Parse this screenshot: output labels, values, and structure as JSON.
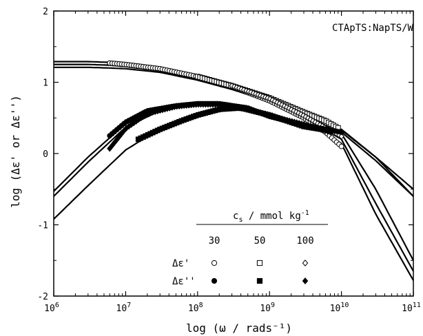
{
  "chart_data": {
    "type": "scatter",
    "title": "",
    "annotation": "CTApTS:NapTS/W",
    "xlabel": "log (ω / rads⁻¹)",
    "ylabel": "log (Δε' or Δε'')",
    "x_scale": "log",
    "xlim": [
      1000000.0,
      100000000000.0
    ],
    "ylim": [
      -2,
      2
    ],
    "x_ticks": [
      {
        "value": 1000000.0,
        "base": "10",
        "exp": "6"
      },
      {
        "value": 10000000.0,
        "base": "10",
        "exp": "7"
      },
      {
        "value": 100000000.0,
        "base": "10",
        "exp": "8"
      },
      {
        "value": 1000000000.0,
        "base": "10",
        "exp": "9"
      },
      {
        "value": 10000000000.0,
        "base": "10",
        "exp": "10"
      },
      {
        "value": 100000000000.0,
        "base": "10",
        "exp": "11"
      }
    ],
    "y_ticks": [
      "-2",
      "-1",
      "0",
      "1",
      "2"
    ],
    "grid": false,
    "legend": {
      "position": "bottom-right",
      "header_c": "c",
      "header_sub": "s",
      "header_unit": " / mmol kg",
      "header_sup": "-1",
      "concentrations": [
        "30",
        "50",
        "100"
      ],
      "rows": [
        "Δε'",
        "Δε''"
      ]
    },
    "series": [
      {
        "quantity": "Δε'",
        "cs": "30",
        "marker": "open-circle",
        "x": [
          6000000.0,
          10000000.0,
          30000000.0,
          100000000.0,
          300000000.0,
          1000000000.0,
          3000000000.0,
          6000000000.0,
          10000000000.0
        ],
        "y": [
          1.27,
          1.25,
          1.19,
          1.08,
          0.94,
          0.74,
          0.5,
          0.3,
          0.1
        ]
      },
      {
        "quantity": "Δε'",
        "cs": "50",
        "marker": "open-square",
        "x": [
          100000000.0,
          300000000.0,
          1000000000.0,
          3000000000.0,
          6000000000.0,
          9000000000.0
        ],
        "y": [
          1.08,
          0.95,
          0.78,
          0.58,
          0.46,
          0.36
        ]
      },
      {
        "quantity": "Δε'",
        "cs": "100",
        "marker": "open-diamond",
        "x": [
          300000000.0,
          1000000000.0,
          3000000000.0,
          6000000000.0,
          10000000000.0
        ],
        "y": [
          0.95,
          0.77,
          0.53,
          0.36,
          0.24
        ]
      },
      {
        "quantity": "Δε''",
        "cs": "30",
        "marker": "filled-circle",
        "x": [
          6000000.0,
          10000000.0,
          20000000.0,
          50000000.0,
          100000000.0,
          200000000.0,
          500000000.0,
          1000000000.0,
          3000000000.0,
          10000000000.0
        ],
        "y": [
          0.25,
          0.44,
          0.6,
          0.67,
          0.7,
          0.7,
          0.64,
          0.52,
          0.4,
          0.3
        ]
      },
      {
        "quantity": "Δε''",
        "cs": "50",
        "marker": "filled-square",
        "x": [
          15000000.0,
          30000000.0,
          60000000.0,
          100000000.0,
          200000000.0,
          400000000.0,
          1000000000.0,
          3000000000.0,
          6000000000.0
        ],
        "y": [
          0.2,
          0.34,
          0.46,
          0.54,
          0.62,
          0.64,
          0.54,
          0.38,
          0.33
        ]
      },
      {
        "quantity": "Δε''",
        "cs": "100",
        "marker": "filled-diamond",
        "x": [
          6000000.0,
          10000000.0,
          20000000.0,
          50000000.0,
          100000000.0,
          200000000.0,
          500000000.0,
          1000000000.0,
          3000000000.0,
          7000000000.0
        ],
        "y": [
          0.07,
          0.35,
          0.56,
          0.66,
          0.69,
          0.69,
          0.63,
          0.53,
          0.41,
          0.3
        ]
      }
    ],
    "fit_curves": [
      {
        "x": [
          1000000.0,
          3000000.0,
          6000000.0,
          10000000.0,
          30000000.0,
          100000000.0,
          300000000.0,
          1000000000.0,
          3000000000.0,
          10000000000.0,
          30000000000.0,
          100000000000.0
        ],
        "y": [
          1.29,
          1.29,
          1.28,
          1.25,
          1.18,
          1.06,
          0.92,
          0.72,
          0.5,
          0.14,
          -0.85,
          -1.78
        ]
      },
      {
        "x": [
          1000000.0,
          3000000.0,
          6000000.0,
          10000000.0,
          30000000.0,
          100000000.0,
          300000000.0,
          1000000000.0,
          3000000000.0,
          10000000000.0,
          30000000000.0,
          100000000000.0
        ],
        "y": [
          1.25,
          1.25,
          1.24,
          1.22,
          1.16,
          1.04,
          0.91,
          0.72,
          0.52,
          0.2,
          -0.7,
          -1.65
        ]
      },
      {
        "x": [
          1000000.0,
          3000000.0,
          6000000.0,
          10000000.0,
          30000000.0,
          100000000.0,
          300000000.0,
          1000000000.0,
          3000000000.0,
          10000000000.0,
          30000000000.0,
          100000000000.0
        ],
        "y": [
          1.21,
          1.21,
          1.2,
          1.19,
          1.14,
          1.03,
          0.9,
          0.73,
          0.55,
          0.28,
          -0.5,
          -1.5
        ]
      },
      {
        "x": [
          1000000.0,
          3000000.0,
          10000000.0,
          30000000.0,
          100000000.0,
          300000000.0,
          1000000000.0,
          3000000000.0,
          10000000000.0,
          30000000000.0,
          100000000000.0
        ],
        "y": [
          -0.53,
          -0.05,
          0.42,
          0.62,
          0.7,
          0.66,
          0.52,
          0.4,
          0.33,
          -0.05,
          -0.5
        ]
      },
      {
        "x": [
          1000000.0,
          3000000.0,
          10000000.0,
          30000000.0,
          100000000.0,
          300000000.0,
          1000000000.0,
          3000000000.0,
          10000000000.0,
          30000000000.0,
          100000000000.0
        ],
        "y": [
          -0.6,
          -0.12,
          0.37,
          0.6,
          0.69,
          0.66,
          0.53,
          0.4,
          0.3,
          -0.1,
          -0.6
        ]
      },
      {
        "x": [
          1000000.0,
          3000000.0,
          10000000.0,
          30000000.0,
          100000000.0,
          300000000.0,
          1000000000.0,
          3000000000.0,
          6000000000.0,
          10000000000.0,
          30000000000.0,
          100000000000.0
        ],
        "y": [
          -0.92,
          -0.45,
          0.05,
          0.35,
          0.54,
          0.62,
          0.56,
          0.42,
          0.37,
          0.34,
          -0.05,
          -0.6
        ]
      }
    ]
  }
}
